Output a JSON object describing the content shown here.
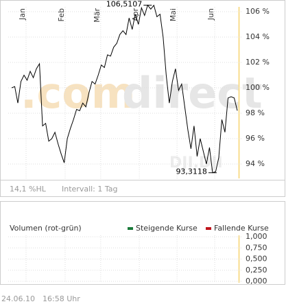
{
  "chart_data": [
    {
      "type": "line",
      "xticks": [
        {
          "value": 4.66,
          "label": "Jan"
        },
        {
          "value": 17.3,
          "label": "Feb"
        },
        {
          "value": 28.8,
          "label": "Mär"
        },
        {
          "value": 41.3,
          "label": "Apr"
        },
        {
          "value": 53.5,
          "label": "Mai"
        },
        {
          "value": 65.7,
          "label": "Jun"
        }
      ],
      "xlim": [
        0,
        73
      ],
      "ylim": [
        93,
        106.6
      ],
      "yticks": [
        {
          "value": 94,
          "label": "94 %"
        },
        {
          "value": 96,
          "label": "96 %"
        },
        {
          "value": 98,
          "label": "98 %"
        },
        {
          "value": 100,
          "label": "100 %"
        },
        {
          "value": 102,
          "label": "102 %"
        },
        {
          "value": 104,
          "label": "104 %"
        },
        {
          "value": 106,
          "label": "106 %"
        }
      ],
      "grid": true,
      "series": [
        {
          "color": "#000000",
          "values": [
            100.0,
            100.1,
            98.8,
            100.5,
            101.0,
            100.6,
            101.3,
            100.8,
            101.5,
            101.9,
            97.0,
            97.2,
            95.8,
            96.0,
            96.5,
            95.6,
            94.8,
            94.1,
            96.0,
            96.8,
            97.5,
            98.3,
            98.2,
            98.8,
            98.5,
            99.6,
            100.5,
            100.3,
            101.0,
            101.8,
            101.6,
            102.6,
            102.5,
            103.2,
            103.5,
            104.2,
            104.5,
            104.2,
            105.5,
            104.6,
            105.8,
            105.0,
            106.3,
            105.7,
            106.5107,
            106.2,
            106.5,
            105.6,
            105.8,
            104.0,
            101.0,
            98.8,
            100.5,
            101.5,
            99.8,
            100.3,
            98.5,
            96.7,
            95.2,
            97.0,
            94.6,
            96.0,
            95.0,
            94.0,
            95.3,
            93.3118,
            93.4,
            94.5,
            97.5,
            96.5,
            99.2,
            99.3,
            99.2,
            98.2
          ]
        }
      ],
      "annotations": [
        {
          "text": "106,5107",
          "x": 44,
          "y": 106.5107
        },
        {
          "text": "93,3118",
          "x": 65,
          "y": 93.3118
        }
      ],
      "watermark": [
        ".com",
        "direct"
      ],
      "symbol": "DJI.DJI",
      "info": [
        "14,1 %HL",
        "Intervall: 1 Tag"
      ]
    },
    {
      "type": "bar",
      "title": "Volumen (rot-grün)",
      "ylim": [
        0,
        1
      ],
      "yticks": [
        {
          "value": 0,
          "label": "0,000"
        },
        {
          "value": 0.25,
          "label": "0,250"
        },
        {
          "value": 0.5,
          "label": "0,500"
        },
        {
          "value": 0.75,
          "label": "0,750"
        },
        {
          "value": 1,
          "label": "1,000"
        }
      ],
      "series": [
        {
          "name": "Steigende Kurse",
          "color": "#1a7a3a"
        },
        {
          "name": "Fallende Kurse",
          "color": "#c0141c"
        }
      ]
    }
  ],
  "footer": [
    "24.06.10",
    "16:58 Uhr"
  ]
}
